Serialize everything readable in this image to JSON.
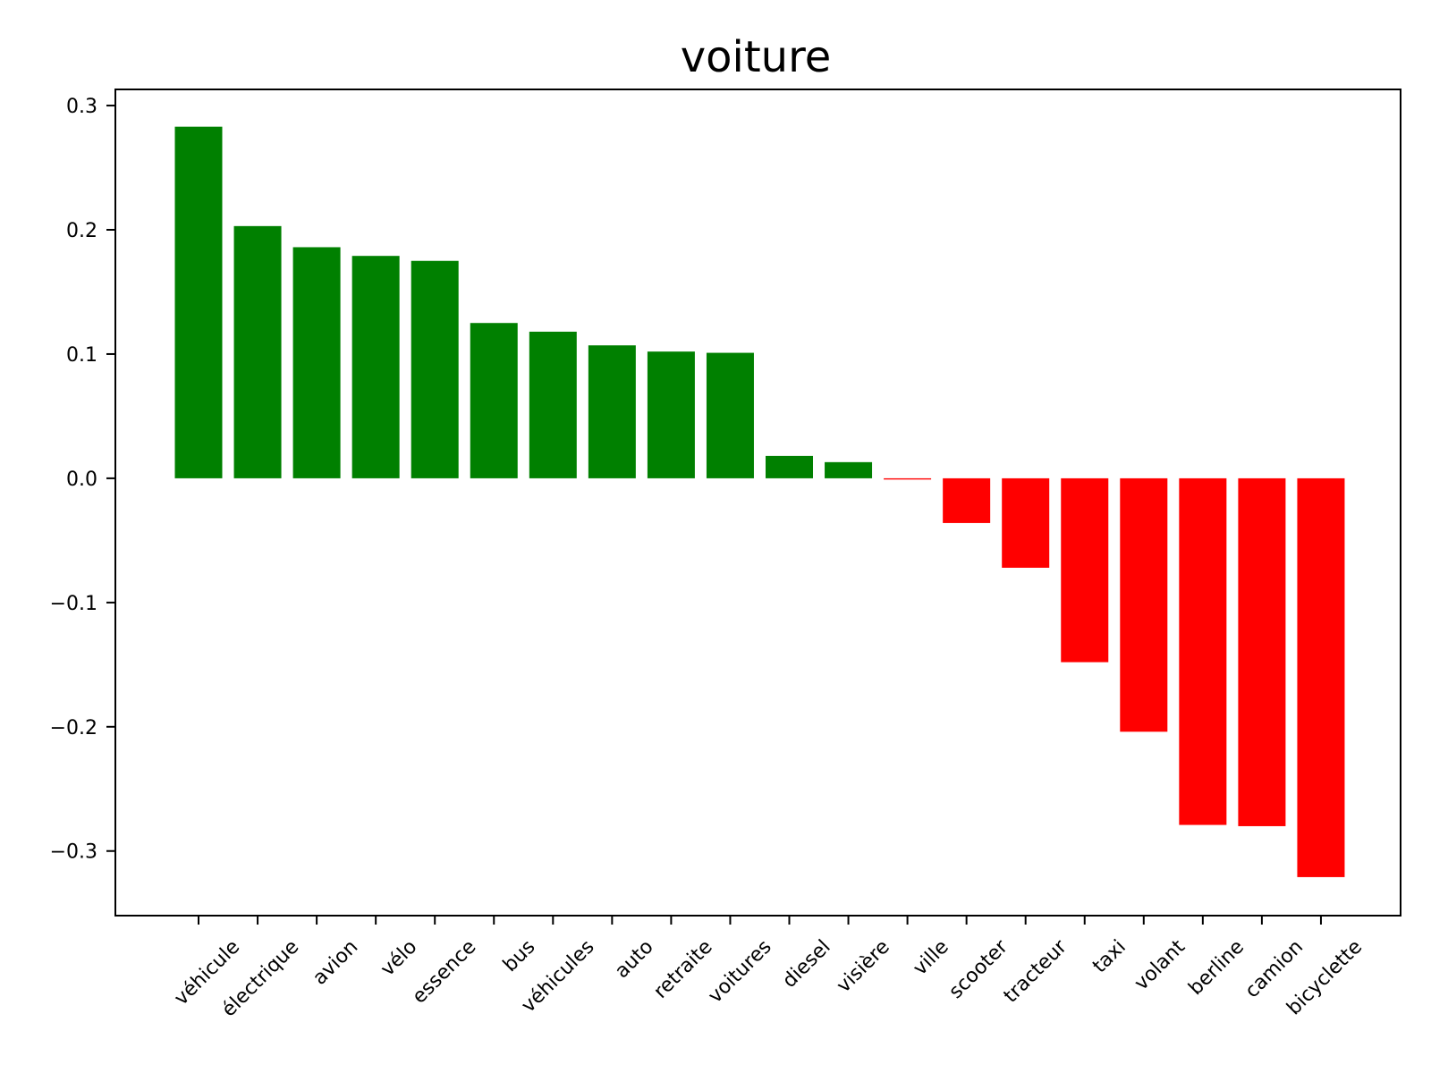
{
  "chart_data": {
    "type": "bar",
    "title": "voiture",
    "xlabel": "",
    "ylabel": "",
    "categories": [
      "véhicule",
      "électrique",
      "avion",
      "vélo",
      "essence",
      "bus",
      "véhicules",
      "auto",
      "retraite",
      "voitures",
      "diesel",
      "visière",
      "ville",
      "scooter",
      "tracteur",
      "taxi",
      "volant",
      "berline",
      "camion",
      "bicyclette"
    ],
    "values": [
      0.283,
      0.203,
      0.186,
      0.179,
      0.175,
      0.125,
      0.118,
      0.107,
      0.102,
      0.101,
      0.018,
      0.013,
      -0.001,
      -0.036,
      -0.072,
      -0.148,
      -0.204,
      -0.279,
      -0.28,
      -0.321
    ],
    "ylim": [
      -0.352,
      0.313
    ],
    "yticks": [
      0.3,
      0.2,
      0.1,
      0.0,
      -0.1,
      -0.2,
      -0.3
    ],
    "ytick_labels": [
      "0.3",
      "0.2",
      "0.1",
      "0.0",
      "−0.1",
      "−0.2",
      "−0.3"
    ],
    "positive_color": "#008000",
    "negative_color": "#ff0000",
    "grid": false,
    "legend": "none"
  }
}
